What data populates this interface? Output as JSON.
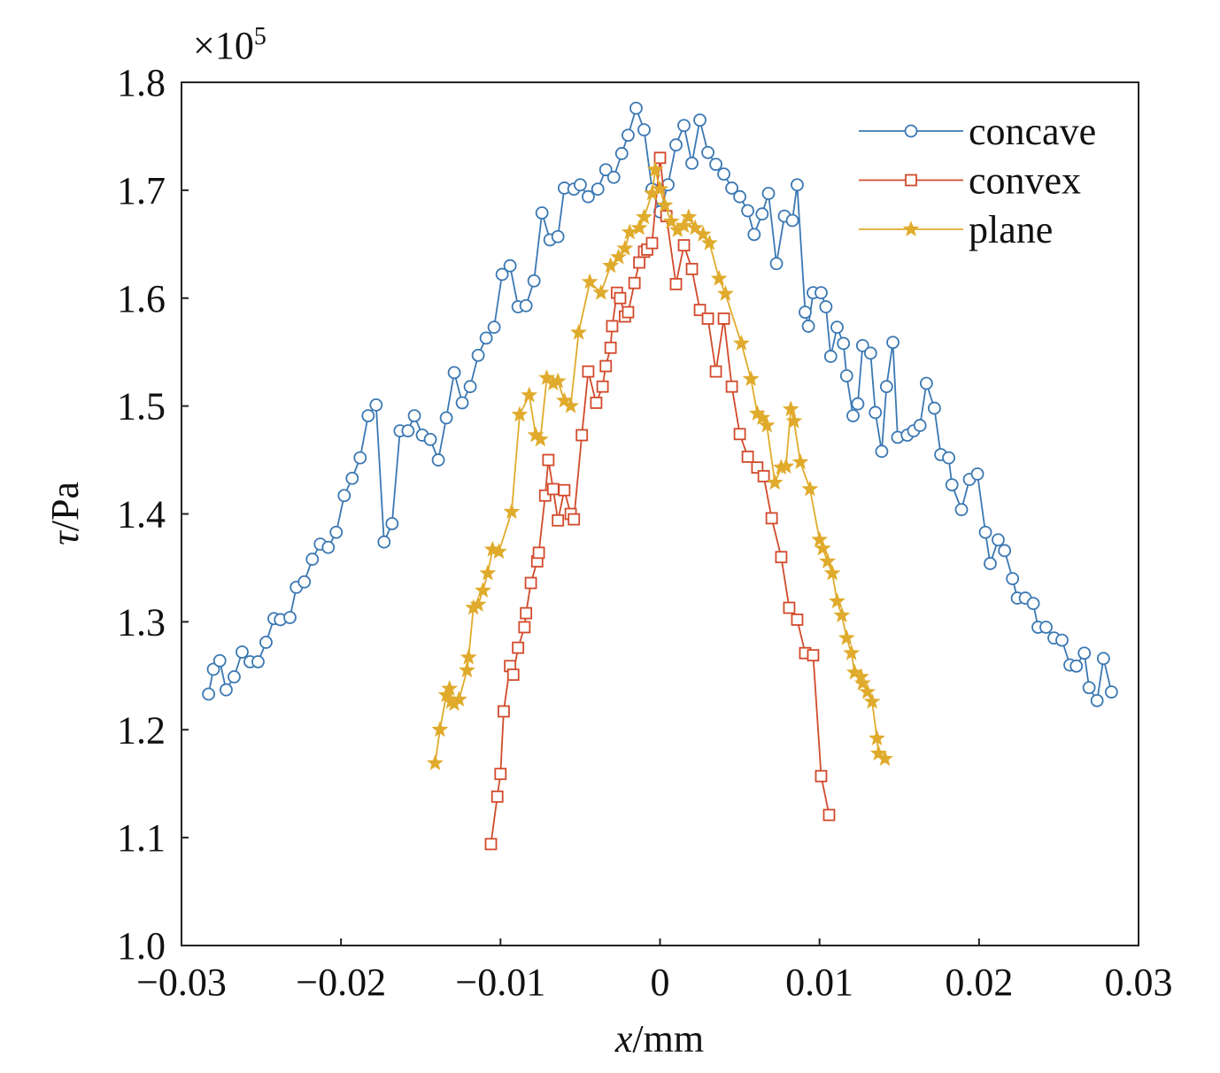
{
  "chart_data": {
    "type": "line",
    "title": "",
    "multiplier_label": "×10",
    "multiplier_exp": "5",
    "xlabel_var": "x",
    "xlabel_unit": "/mm",
    "ylabel_var": "τ",
    "ylabel_unit": "/Pa",
    "xlim": [
      -0.03,
      0.03
    ],
    "ylim": [
      1.0,
      1.8
    ],
    "xticks": [
      -0.03,
      -0.02,
      -0.01,
      0,
      0.01,
      0.02,
      0.03
    ],
    "xtick_labels": [
      "−0.03",
      "−0.02",
      "−0.01",
      "0",
      "0.01",
      "0.02",
      "0.03"
    ],
    "yticks": [
      1.0,
      1.1,
      1.2,
      1.3,
      1.4,
      1.5,
      1.6,
      1.7,
      1.8
    ],
    "ytick_labels": [
      "1.0",
      "1.1",
      "1.2",
      "1.3",
      "1.4",
      "1.5",
      "1.6",
      "1.7",
      "1.8"
    ],
    "grid": false,
    "legend_position": "top-right",
    "series": [
      {
        "name": "concave",
        "color": "#3b78b3",
        "marker": "circle",
        "x": [
          -0.0283,
          -0.028,
          -0.0276,
          -0.0272,
          -0.0267,
          -0.0262,
          -0.0257,
          -0.0252,
          -0.0247,
          -0.0242,
          -0.0238,
          -0.0232,
          -0.0228,
          -0.0223,
          -0.0218,
          -0.0213,
          -0.0208,
          -0.0203,
          -0.0198,
          -0.0193,
          -0.0188,
          -0.0183,
          -0.0178,
          -0.0173,
          -0.0168,
          -0.0163,
          -0.0158,
          -0.0154,
          -0.0149,
          -0.0144,
          -0.0139,
          -0.0134,
          -0.0129,
          -0.0124,
          -0.0119,
          -0.0114,
          -0.0109,
          -0.0104,
          -0.0099,
          -0.0094,
          -0.0089,
          -0.0084,
          -0.0079,
          -0.0074,
          -0.0069,
          -0.0064,
          -0.006,
          -0.0054,
          -0.005,
          -0.0045,
          -0.0039,
          -0.0034,
          -0.0029,
          -0.0024,
          -0.002,
          -0.0015,
          -0.001,
          -0.0005,
          0.0,
          0.0005,
          0.001,
          0.0015,
          0.002,
          0.0025,
          0.003,
          0.0035,
          0.004,
          0.0045,
          0.005,
          0.0055,
          0.0059,
          0.0064,
          0.0068,
          0.0073,
          0.0078,
          0.0083,
          0.0086,
          0.0091,
          0.0093,
          0.0096,
          0.0101,
          0.0104,
          0.0107,
          0.0111,
          0.0115,
          0.0117,
          0.0121,
          0.0124,
          0.0127,
          0.0132,
          0.0135,
          0.0139,
          0.0142,
          0.0146,
          0.0149,
          0.0155,
          0.0159,
          0.0163,
          0.0167,
          0.0172,
          0.0176,
          0.0181,
          0.0183,
          0.0189,
          0.0194,
          0.0199,
          0.0204,
          0.0207,
          0.0212,
          0.0216,
          0.0221,
          0.0224,
          0.0229,
          0.0234,
          0.0237,
          0.0242,
          0.0247,
          0.0252,
          0.0257,
          0.0261,
          0.0266,
          0.0269,
          0.0274,
          0.0278,
          0.0283
        ],
        "y": [
          1.233,
          1.256,
          1.264,
          1.237,
          1.249,
          1.272,
          1.263,
          1.263,
          1.281,
          1.303,
          1.302,
          1.304,
          1.332,
          1.337,
          1.358,
          1.372,
          1.369,
          1.383,
          1.417,
          1.433,
          1.452,
          1.491,
          1.501,
          1.374,
          1.391,
          1.477,
          1.477,
          1.491,
          1.473,
          1.469,
          1.45,
          1.489,
          1.531,
          1.503,
          1.518,
          1.547,
          1.563,
          1.573,
          1.622,
          1.63,
          1.592,
          1.593,
          1.616,
          1.679,
          1.654,
          1.657,
          1.702,
          1.701,
          1.705,
          1.694,
          1.701,
          1.719,
          1.712,
          1.734,
          1.751,
          1.776,
          1.756,
          1.701,
          1.68,
          1.705,
          1.742,
          1.76,
          1.725,
          1.765,
          1.735,
          1.724,
          1.715,
          1.702,
          1.694,
          1.681,
          1.659,
          1.678,
          1.697,
          1.632,
          1.676,
          1.672,
          1.705,
          1.587,
          1.574,
          1.605,
          1.605,
          1.592,
          1.546,
          1.573,
          1.558,
          1.528,
          1.491,
          1.502,
          1.556,
          1.549,
          1.494,
          1.458,
          1.518,
          1.559,
          1.471,
          1.473,
          1.477,
          1.482,
          1.521,
          1.498,
          1.455,
          1.452,
          1.427,
          1.404,
          1.432,
          1.437,
          1.383,
          1.354,
          1.376,
          1.366,
          1.34,
          1.322,
          1.322,
          1.317,
          1.295,
          1.295,
          1.285,
          1.283,
          1.26,
          1.259,
          1.271,
          1.239,
          1.227,
          1.266,
          1.235
        ]
      },
      {
        "name": "convex",
        "color": "#d24a2b",
        "marker": "square",
        "x": [
          -0.0106,
          -0.0102,
          -0.01,
          -0.0098,
          -0.0094,
          -0.0092,
          -0.0089,
          -0.0085,
          -0.0084,
          -0.0081,
          -0.0077,
          -0.0076,
          -0.0072,
          -0.007,
          -0.0067,
          -0.0064,
          -0.006,
          -0.0056,
          -0.0054,
          -0.0049,
          -0.0045,
          -0.004,
          -0.0036,
          -0.0034,
          -0.0031,
          -0.003,
          -0.0027,
          -0.0025,
          -0.0022,
          -0.002,
          -0.0016,
          -0.0013,
          -0.001,
          -0.0008,
          -0.0005,
          0.0,
          0.0004,
          0.001,
          0.0015,
          0.002,
          0.0025,
          0.003,
          0.0035,
          0.004,
          0.0045,
          0.005,
          0.0055,
          0.0061,
          0.0065,
          0.007,
          0.0076,
          0.0081,
          0.0086,
          0.0091,
          0.0096,
          0.0101,
          0.0106
        ],
        "y": [
          1.094,
          1.138,
          1.159,
          1.217,
          1.259,
          1.251,
          1.276,
          1.295,
          1.308,
          1.336,
          1.356,
          1.364,
          1.417,
          1.45,
          1.423,
          1.394,
          1.422,
          1.4,
          1.395,
          1.473,
          1.532,
          1.503,
          1.518,
          1.537,
          1.554,
          1.574,
          1.605,
          1.6,
          1.583,
          1.587,
          1.614,
          1.633,
          1.643,
          1.645,
          1.651,
          1.73,
          1.676,
          1.613,
          1.649,
          1.627,
          1.589,
          1.581,
          1.532,
          1.581,
          1.518,
          1.474,
          1.453,
          1.443,
          1.435,
          1.396,
          1.36,
          1.313,
          1.302,
          1.271,
          1.269,
          1.157,
          1.121
        ]
      },
      {
        "name": "plane",
        "color": "#e0ab2c",
        "marker": "star",
        "x": [
          -0.0141,
          -0.0138,
          -0.0134,
          -0.0132,
          -0.0131,
          -0.0129,
          -0.0126,
          -0.0121,
          -0.012,
          -0.0117,
          -0.0114,
          -0.0111,
          -0.0108,
          -0.0105,
          -0.0101,
          -0.0093,
          -0.0088,
          -0.0082,
          -0.0078,
          -0.0075,
          -0.0071,
          -0.0067,
          -0.0064,
          -0.006,
          -0.0056,
          -0.0051,
          -0.0044,
          -0.0037,
          -0.0031,
          -0.0026,
          -0.0022,
          -0.0019,
          -0.0013,
          -0.001,
          -0.0005,
          -0.0003,
          0.0,
          0.0003,
          0.0007,
          0.0011,
          0.0015,
          0.0018,
          0.0022,
          0.0027,
          0.0031,
          0.0037,
          0.0041,
          0.0051,
          0.0057,
          0.0061,
          0.0064,
          0.0067,
          0.0072,
          0.0076,
          0.0079,
          0.0082,
          0.0084,
          0.0088,
          0.0094,
          0.01,
          0.0102,
          0.0105,
          0.0108,
          0.0111,
          0.0114,
          0.0117,
          0.012,
          0.0122,
          0.0126,
          0.0127,
          0.013,
          0.0133,
          0.0136,
          0.0137,
          0.0141
        ],
        "y": [
          1.169,
          1.2,
          1.232,
          1.238,
          1.226,
          1.224,
          1.228,
          1.255,
          1.267,
          1.313,
          1.316,
          1.329,
          1.345,
          1.367,
          1.365,
          1.402,
          1.492,
          1.51,
          1.473,
          1.469,
          1.526,
          1.521,
          1.523,
          1.505,
          1.5,
          1.568,
          1.615,
          1.605,
          1.63,
          1.638,
          1.646,
          1.661,
          1.665,
          1.675,
          1.697,
          1.719,
          1.701,
          1.686,
          1.671,
          1.663,
          1.667,
          1.675,
          1.665,
          1.659,
          1.651,
          1.618,
          1.604,
          1.558,
          1.525,
          1.493,
          1.489,
          1.482,
          1.429,
          1.443,
          1.444,
          1.497,
          1.486,
          1.448,
          1.423,
          1.376,
          1.368,
          1.356,
          1.345,
          1.319,
          1.306,
          1.285,
          1.271,
          1.253,
          1.249,
          1.243,
          1.235,
          1.226,
          1.192,
          1.178,
          1.173
        ]
      }
    ]
  }
}
